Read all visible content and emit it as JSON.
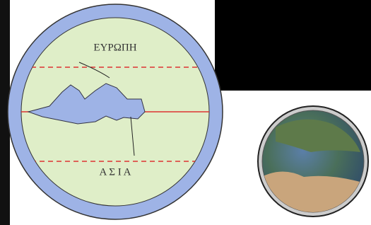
{
  "labels": {
    "europe": "ΕΥΡΩΠΗ",
    "asia": "Α Σ Ι Α"
  }
}
